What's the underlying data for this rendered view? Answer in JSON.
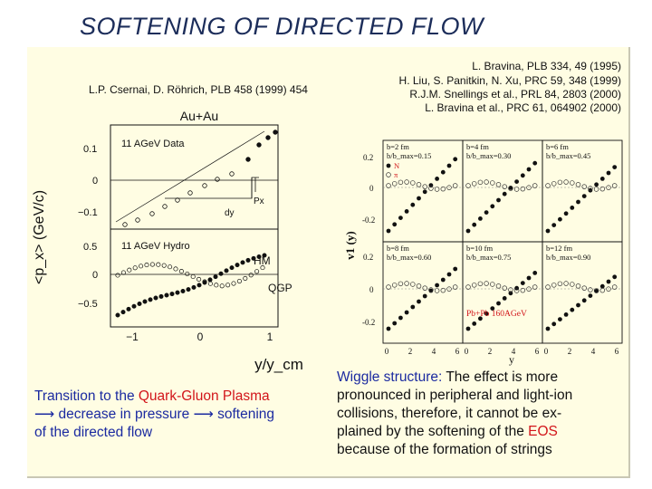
{
  "slide": {
    "title": "SOFTENING OF DIRECTED FLOW"
  },
  "references": {
    "left": "L.P. Csernai, D. Röhrich, PLB 458 (1999) 454",
    "right": [
      "L. Bravina, PLB 334, 49 (1995)",
      "H. Liu, S. Panitkin, N. Xu, PRC 59, 348 (1999)",
      "R.J.M. Snellings et al., PRL 84, 2803 (2000)",
      "L. Bravina et al., PRC 61, 064902 (2000)"
    ]
  },
  "left_figure": {
    "top_label": "Au+Au",
    "ylabel": "<p_x> (GeV/c)",
    "xlabel": "y/y_cm",
    "top_panel_label": "11 AGeV Data",
    "bottom_panel_label": "11 AGeV Hydro",
    "hm_label": "HM",
    "qgp_label": "QGP",
    "px_label": "Px",
    "dy_label": "dy",
    "top_yticks": [
      "0.1",
      "0",
      "−0.1"
    ],
    "bottom_yticks": [
      "0.5",
      "0",
      "−0.5"
    ],
    "xticks": [
      "−1",
      "0",
      "1"
    ]
  },
  "right_figure": {
    "ylabel": "v1 (y)",
    "xlabel": "y",
    "yticks_top": [
      "0.2",
      "0",
      "-0.2"
    ],
    "yticks_bottom": [
      "0.2",
      "0",
      "-0.2"
    ],
    "xticks": [
      "0",
      "2",
      "4",
      "6"
    ],
    "legend_n": "N",
    "legend_pi": "π",
    "system_label": "Pb+Pb 160AGeV",
    "panels": [
      {
        "b": "b=2 fm",
        "ratio": "b/b_max=0.15"
      },
      {
        "b": "b=4 fm",
        "ratio": "b/b_max=0.30"
      },
      {
        "b": "b=6 fm",
        "ratio": "b/b_max=0.45"
      },
      {
        "b": "b=8 fm",
        "ratio": "b/b_max=0.60"
      },
      {
        "b": "b=10 fm",
        "ratio": "b/b_max=0.75"
      },
      {
        "b": "b=12 fm",
        "ratio": "b/b_max=0.90"
      }
    ]
  },
  "summary": {
    "line1_a": "Transition to the ",
    "line1_b": "Quark-Gluon Plasma",
    "line2": "⟶ decrease in pressure ⟶ softening",
    "line3": "of the directed flow"
  },
  "wiggle": {
    "heading": "Wiggle structure:",
    "line1_rest": " The effect is more",
    "line2": "pronounced in peripheral and light-ion",
    "line3": "collisions, therefore, it cannot be ex-",
    "line4_a": "plained by the softening of the ",
    "line4_b": "EOS",
    "line5": "because of the formation of strings"
  },
  "colors": {
    "title": "#1c2d5a",
    "background": "#fffde3",
    "text_blue": "#1b2aa0",
    "highlight_red": "#d2151a"
  }
}
